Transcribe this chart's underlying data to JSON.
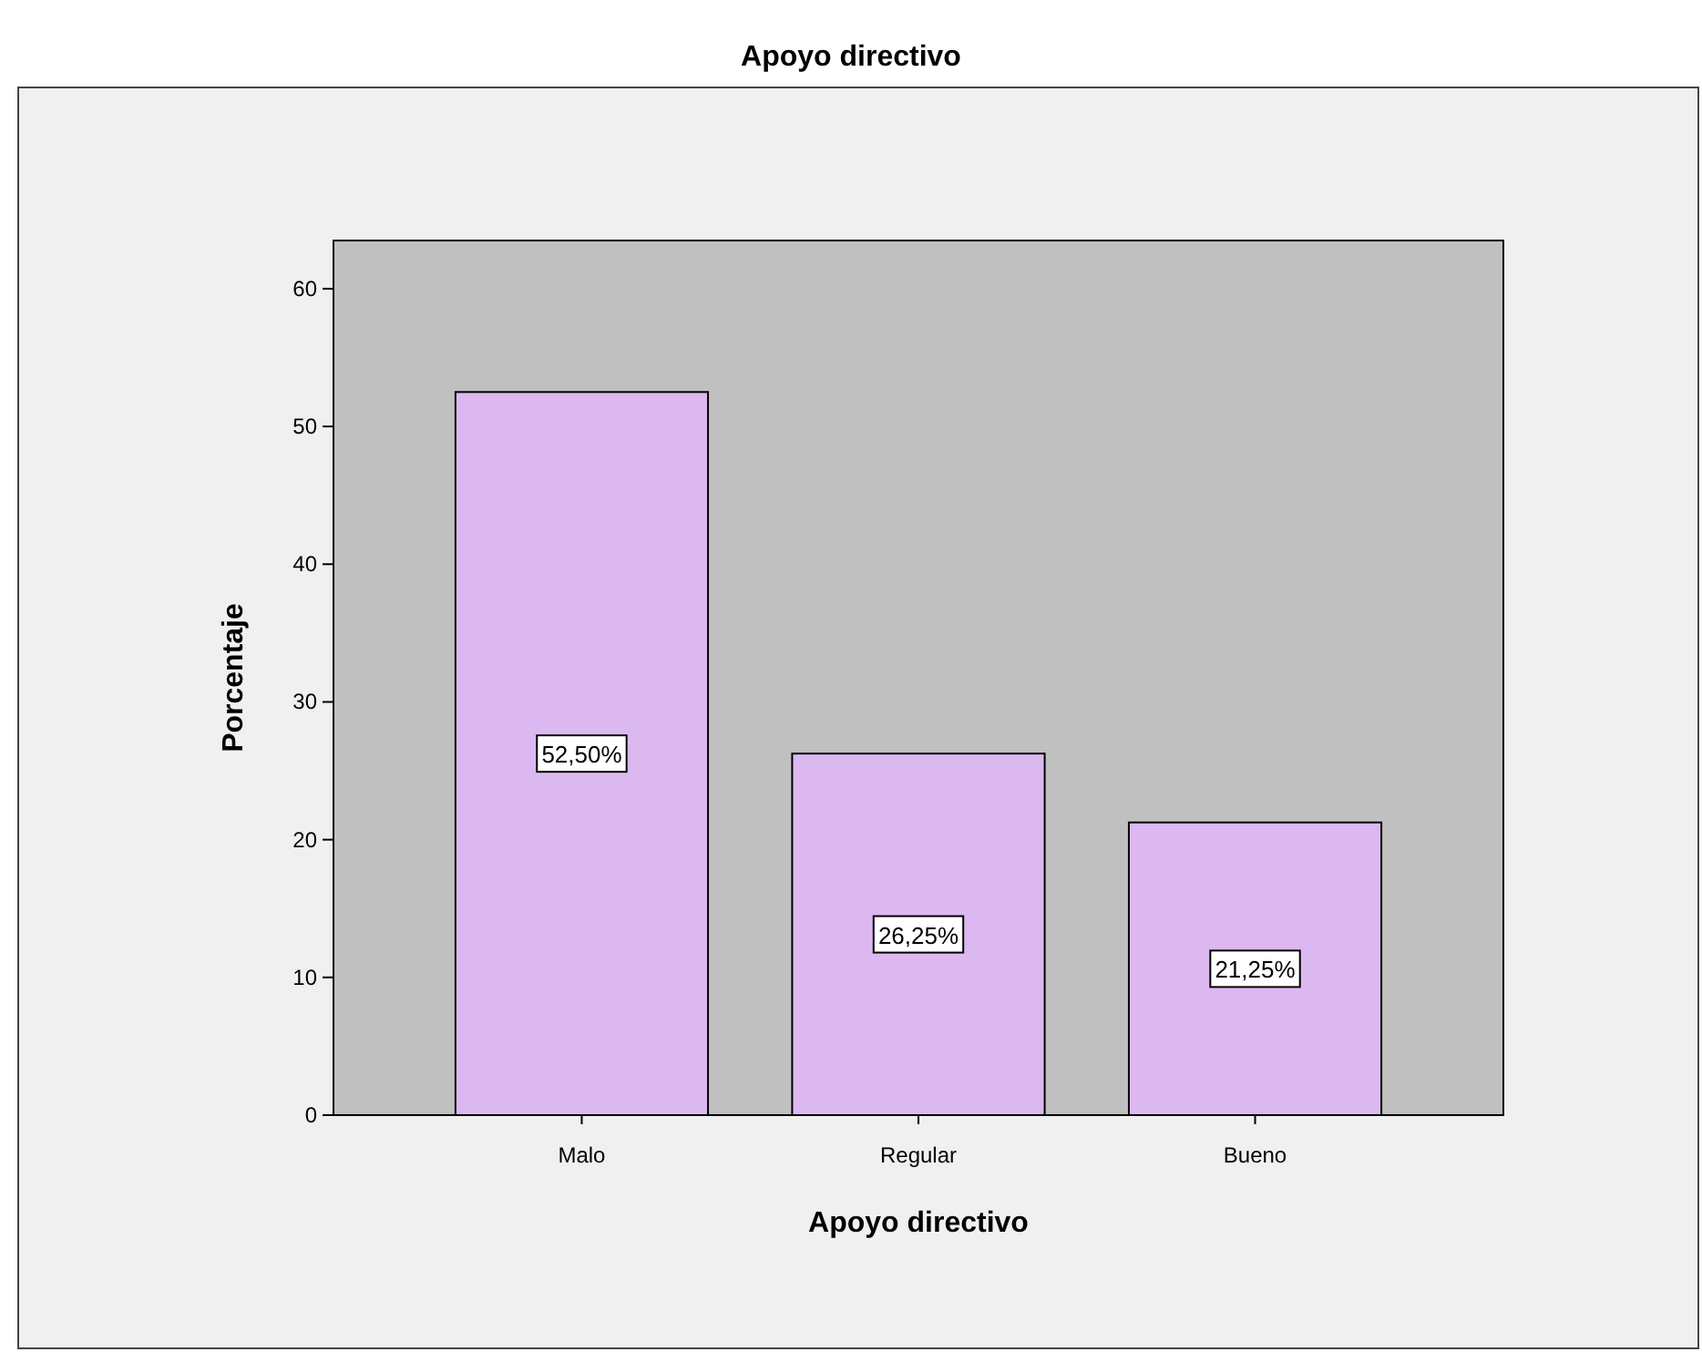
{
  "chart_data": {
    "type": "bar",
    "title": "Apoyo directivo",
    "xlabel": "Apoyo directivo",
    "ylabel": "Porcentaje",
    "categories": [
      "Malo",
      "Regular",
      "Bueno"
    ],
    "values": [
      52.5,
      26.25,
      21.25
    ],
    "value_labels": [
      "52,50%",
      "26,25%",
      "21,25%"
    ],
    "color": "#dcb8f0",
    "ylim": [
      0,
      63.5
    ],
    "yticks": [
      0,
      10,
      20,
      30,
      40,
      50,
      60
    ],
    "grid": false
  }
}
